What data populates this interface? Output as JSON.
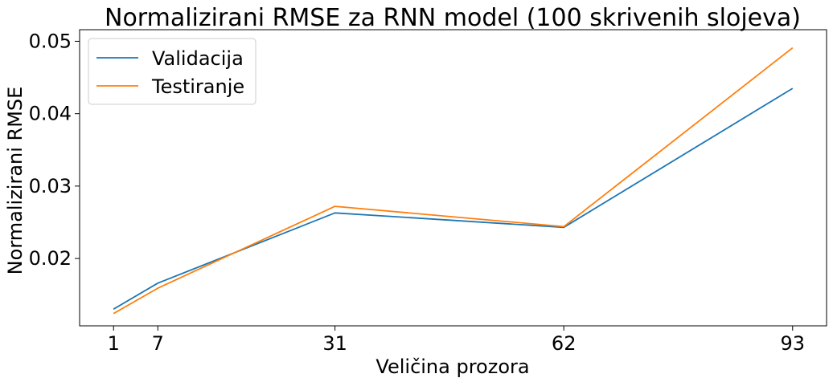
{
  "chart_data": {
    "type": "line",
    "title": "Normalizirani RMSE za RNN model (100 skrivenih slojeva)",
    "xlabel": "Veličina prozora",
    "ylabel": "Normalizirani RMSE",
    "x": [
      1,
      7,
      31,
      62,
      93
    ],
    "xticks": [
      1,
      7,
      31,
      62,
      93
    ],
    "xtick_labels": [
      "1",
      "7",
      "31",
      "62",
      "93"
    ],
    "xlim": [
      -3.6,
      97.6
    ],
    "ylim": [
      0.0107,
      0.0516
    ],
    "yticks": [
      0.02,
      0.03,
      0.04,
      0.05
    ],
    "ytick_labels": [
      "0.02",
      "0.03",
      "0.04",
      "0.05"
    ],
    "grid": false,
    "legend_position": "top-left",
    "series": [
      {
        "name": "Validacija",
        "color": "#1f77b4",
        "values": [
          0.013,
          0.0166,
          0.0263,
          0.0243,
          0.0435
        ]
      },
      {
        "name": "Testiranje",
        "color": "#ff7f0e",
        "values": [
          0.0124,
          0.0159,
          0.0272,
          0.0244,
          0.0491
        ]
      }
    ]
  }
}
